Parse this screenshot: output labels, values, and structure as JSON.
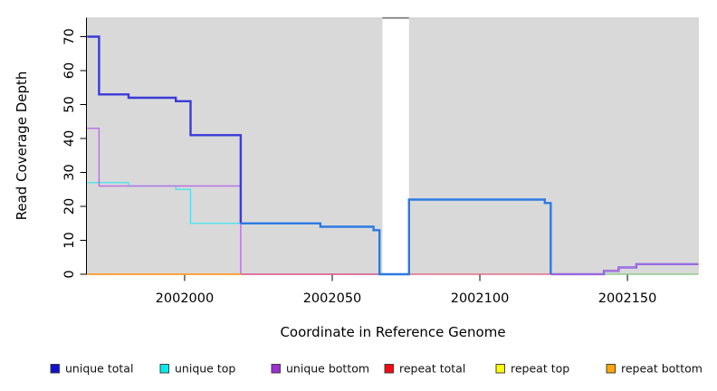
{
  "figure": {
    "y_axis": {
      "label": "Read Coverage Depth",
      "ticks": [
        0,
        10,
        20,
        30,
        40,
        50,
        60,
        70
      ]
    },
    "x_axis": {
      "label": "Coordinate in Reference Genome",
      "ticks": [
        2002000,
        2002050,
        2002100,
        2002150
      ]
    },
    "legend": {
      "items": [
        {
          "label": "unique total",
          "color": "#1212cc"
        },
        {
          "label": "unique top",
          "color": "#00eeee"
        },
        {
          "label": "unique bottom",
          "color": "#9d2ed8"
        },
        {
          "label": "repeat total",
          "color": "#f50a14"
        },
        {
          "label": "repeat top",
          "color": "#fdfd00"
        },
        {
          "label": "repeat bottom",
          "color": "#ffa40a"
        }
      ]
    },
    "chart_data": {
      "type": "line",
      "subtype": "step-coverage",
      "grid": false,
      "background": "#d9d9d9",
      "x_range": [
        2001966.9,
        2002174.2
      ],
      "y_range": [
        0,
        75.6
      ],
      "gap_region": {
        "from": 2002067,
        "to": 2002076,
        "fill": "#ffffff",
        "top_border": "#858585",
        "note": "white no-data band interrupting gray plot background"
      },
      "zero_line_appearance": [
        {
          "from": 2001967,
          "to": 2002019,
          "color": "#ff9d2e",
          "meaning": "repeat lines at 0, orange on top"
        },
        {
          "from": 2002019,
          "to": 2002124,
          "color": "#e25570",
          "meaning": "repeat total at 0 over purple, pink"
        },
        {
          "from": 2002124,
          "to": 2002174,
          "color": "#7cc87c",
          "meaning": "top-strand lines overlap at 0, pale green"
        }
      ],
      "series": [
        {
          "name": "unique-top",
          "legend_label": "unique top",
          "color": "#55e2ea",
          "width": 1.5,
          "segments": [
            {
              "steps": [
                [
                  2001967,
                  27
                ],
                [
                  2001981,
                  26
                ],
                [
                  2001997,
                  25
                ],
                [
                  2002002,
                  15
                ],
                [
                  2002046,
                  14
                ],
                [
                  2002064,
                  13
                ],
                [
                  2002066,
                  0
                ],
                [
                  2002076,
                  22
                ],
                [
                  2002122,
                  21
                ],
                [
                  2002124,
                  0
                ]
              ],
              "end": 2002124
            }
          ]
        },
        {
          "name": "zero-overlap-right",
          "legend_label": null,
          "color": "#7cc87c",
          "width": 1.3,
          "note": "unique top + repeat top overlapping at depth 0",
          "segments": [
            {
              "steps": [
                [
                  2002124,
                  0
                ]
              ],
              "end": 2002174
            }
          ]
        },
        {
          "name": "unique-bottom-left",
          "legend_label": "unique bottom",
          "color": "#bc72e6",
          "width": 1.5,
          "segments": [
            {
              "steps": [
                [
                  2001967,
                  43
                ],
                [
                  2001971,
                  26
                ],
                [
                  2002019,
                  0
                ]
              ],
              "end": 2002067
            }
          ]
        },
        {
          "name": "repeat-total",
          "legend_label": "repeat total",
          "color": "#e25570",
          "width": 1.3,
          "segments": [
            {
              "steps": [
                [
                  2001967,
                  0
                ]
              ],
              "end": 2002067
            },
            {
              "steps": [
                [
                  2002076,
                  0
                ]
              ],
              "end": 2002124
            }
          ]
        },
        {
          "name": "repeat-top",
          "legend_label": "repeat top",
          "color": "#f0e626",
          "width": 1.2,
          "segments": [
            {
              "steps": [
                [
                  2001967,
                  0
                ]
              ],
              "end": 2002019
            }
          ]
        },
        {
          "name": "repeat-bottom",
          "legend_label": "repeat bottom",
          "color": "#ff9d2e",
          "width": 1.7,
          "segments": [
            {
              "steps": [
                [
                  2001967,
                  0
                ]
              ],
              "end": 2002019
            }
          ]
        },
        {
          "name": "unique-total-left",
          "legend_label": "unique total",
          "color": "#3a3ad9",
          "width": 2.4,
          "segments": [
            {
              "steps": [
                [
                  2001967,
                  70
                ],
                [
                  2001971,
                  53
                ],
                [
                  2001981,
                  52
                ],
                [
                  2001997,
                  51
                ],
                [
                  2002002,
                  41
                ],
                [
                  2002019,
                  15
                ]
              ],
              "end": 2002019
            }
          ]
        },
        {
          "name": "unique-total-mid",
          "legend_label": "unique total",
          "color": "#2b7ae4",
          "width": 2.4,
          "note": "coincides with unique top here, brighter blue",
          "segments": [
            {
              "steps": [
                [
                  2002019,
                  15
                ],
                [
                  2002046,
                  14
                ],
                [
                  2002064,
                  13
                ],
                [
                  2002066,
                  0
                ],
                [
                  2002076,
                  22
                ],
                [
                  2002122,
                  21
                ],
                [
                  2002124,
                  0
                ]
              ],
              "end": 2002124
            }
          ]
        },
        {
          "name": "unique-total-right",
          "legend_label": "unique total",
          "color": "#3a3ad9",
          "width": 2.2,
          "segments": [
            {
              "steps": [
                [
                  2002124,
                  0
                ],
                [
                  2002142,
                  1
                ],
                [
                  2002147,
                  2
                ],
                [
                  2002153,
                  3
                ]
              ],
              "end": 2002174
            }
          ]
        },
        {
          "name": "unique-bottom-right",
          "legend_label": "unique bottom",
          "color": "#bc72e6",
          "width": 1.4,
          "note": "coincides with unique total here, looks violet",
          "segments": [
            {
              "steps": [
                [
                  2002124,
                  0
                ],
                [
                  2002142,
                  1
                ],
                [
                  2002147,
                  2
                ],
                [
                  2002153,
                  3
                ]
              ],
              "end": 2002174
            }
          ]
        }
      ]
    }
  }
}
